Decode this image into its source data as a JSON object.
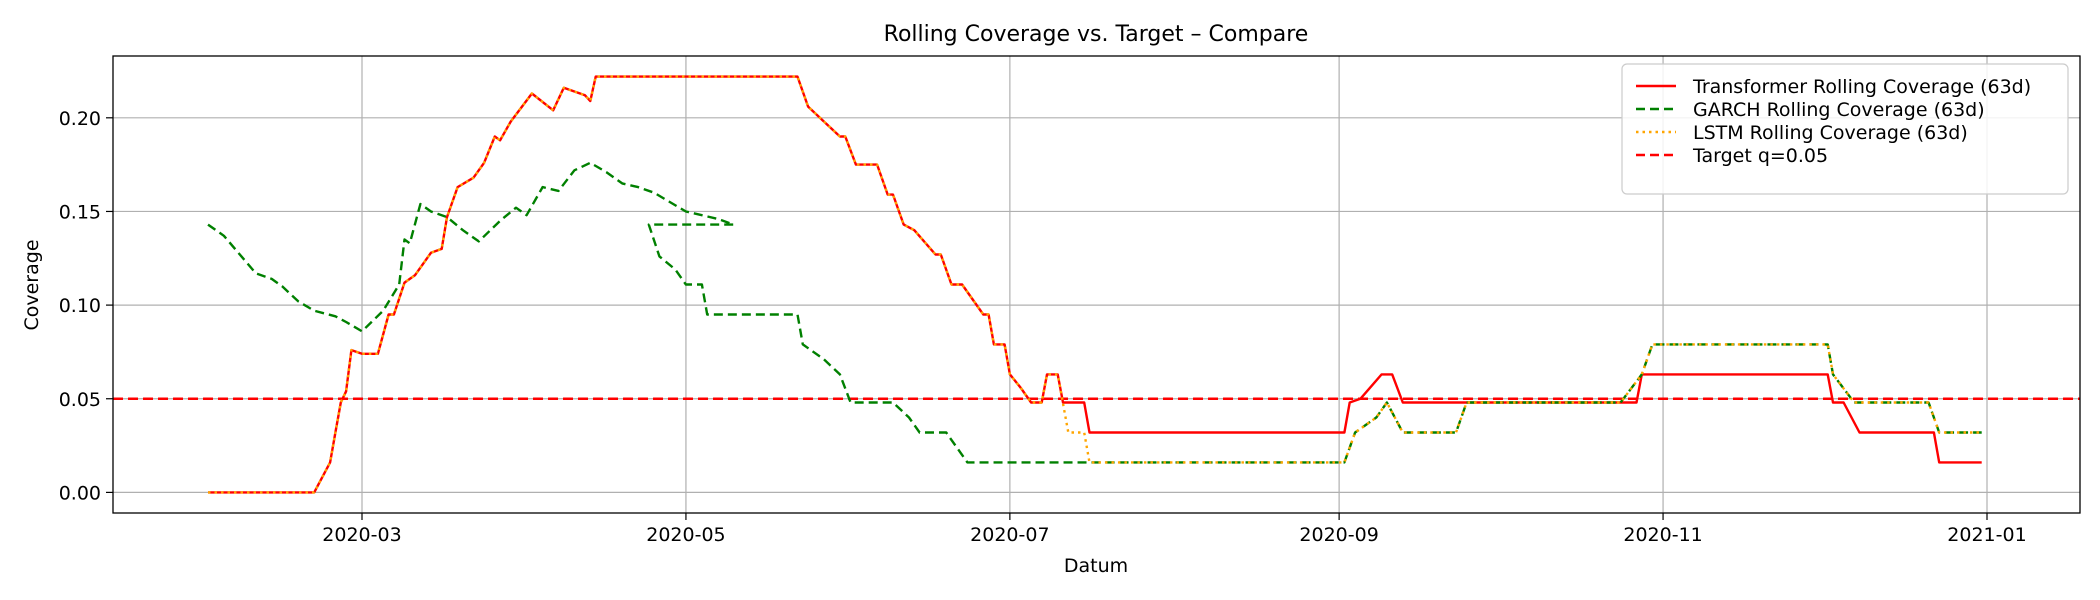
{
  "chart_data": {
    "type": "line",
    "title": "Rolling Coverage vs. Target – Compare",
    "xlabel": "Datum",
    "ylabel": "Coverage",
    "xlim": [
      "2020-01-04",
      "2021-01-28"
    ],
    "ylim": [
      -0.011,
      0.233
    ],
    "grid": true,
    "legend_position": "top-right",
    "x_ticks": [
      "2020-03",
      "2020-05",
      "2020-07",
      "2020-09",
      "2020-11",
      "2021-01"
    ],
    "x_tick_dates": [
      "2020-03-01",
      "2020-05-01",
      "2020-07-01",
      "2020-09-01",
      "2020-11-01",
      "2021-01-01"
    ],
    "y_ticks": [
      0.0,
      0.05,
      0.1,
      0.15,
      0.2
    ],
    "y_tick_labels": [
      "0.00",
      "0.05",
      "0.10",
      "0.15",
      "0.20"
    ],
    "target": {
      "name": "Target q=0.05",
      "value": 0.05,
      "color": "#ff0000",
      "style": "dashed"
    },
    "series": [
      {
        "name": "Transformer Rolling Coverage (63d)",
        "color": "#ff0000",
        "style": "solid",
        "points": [
          [
            "2020-02-01",
            0.0
          ],
          [
            "2020-02-21",
            0.0
          ],
          [
            "2020-02-24",
            0.016
          ],
          [
            "2020-02-25",
            0.032
          ],
          [
            "2020-02-26",
            0.048
          ],
          [
            "2020-02-27",
            0.054
          ],
          [
            "2020-02-28",
            0.076
          ],
          [
            "2020-03-01",
            0.074
          ],
          [
            "2020-03-04",
            0.074
          ],
          [
            "2020-03-06",
            0.095
          ],
          [
            "2020-03-07",
            0.095
          ],
          [
            "2020-03-09",
            0.112
          ],
          [
            "2020-03-11",
            0.116
          ],
          [
            "2020-03-14",
            0.128
          ],
          [
            "2020-03-16",
            0.13
          ],
          [
            "2020-03-17",
            0.147
          ],
          [
            "2020-03-19",
            0.163
          ],
          [
            "2020-03-22",
            0.168
          ],
          [
            "2020-03-24",
            0.176
          ],
          [
            "2020-03-26",
            0.19
          ],
          [
            "2020-03-27",
            0.188
          ],
          [
            "2020-03-29",
            0.198
          ],
          [
            "2020-04-02",
            0.213
          ],
          [
            "2020-04-06",
            0.204
          ],
          [
            "2020-04-08",
            0.216
          ],
          [
            "2020-04-12",
            0.212
          ],
          [
            "2020-04-13",
            0.209
          ],
          [
            "2020-04-14",
            0.222
          ],
          [
            "2020-05-22",
            0.222
          ],
          [
            "2020-05-24",
            0.206
          ],
          [
            "2020-05-27",
            0.198
          ],
          [
            "2020-05-30",
            0.19
          ],
          [
            "2020-05-31",
            0.19
          ],
          [
            "2020-06-02",
            0.175
          ],
          [
            "2020-06-06",
            0.175
          ],
          [
            "2020-06-08",
            0.159
          ],
          [
            "2020-06-09",
            0.159
          ],
          [
            "2020-06-11",
            0.143
          ],
          [
            "2020-06-13",
            0.14
          ],
          [
            "2020-06-17",
            0.127
          ],
          [
            "2020-06-18",
            0.127
          ],
          [
            "2020-06-20",
            0.111
          ],
          [
            "2020-06-22",
            0.111
          ],
          [
            "2020-06-26",
            0.095
          ],
          [
            "2020-06-27",
            0.095
          ],
          [
            "2020-06-28",
            0.079
          ],
          [
            "2020-06-30",
            0.079
          ],
          [
            "2020-07-01",
            0.063
          ],
          [
            "2020-07-03",
            0.056
          ],
          [
            "2020-07-05",
            0.048
          ],
          [
            "2020-07-07",
            0.048
          ],
          [
            "2020-07-08",
            0.063
          ],
          [
            "2020-07-10",
            0.063
          ],
          [
            "2020-07-11",
            0.048
          ],
          [
            "2020-07-15",
            0.048
          ],
          [
            "2020-07-16",
            0.032
          ],
          [
            "2020-09-02",
            0.032
          ],
          [
            "2020-09-03",
            0.048
          ],
          [
            "2020-09-05",
            0.05
          ],
          [
            "2020-09-09",
            0.063
          ],
          [
            "2020-09-11",
            0.063
          ],
          [
            "2020-09-13",
            0.048
          ],
          [
            "2020-10-27",
            0.048
          ],
          [
            "2020-10-28",
            0.063
          ],
          [
            "2020-12-02",
            0.063
          ],
          [
            "2020-12-03",
            0.048
          ],
          [
            "2020-12-05",
            0.048
          ],
          [
            "2020-12-08",
            0.032
          ],
          [
            "2020-12-22",
            0.032
          ],
          [
            "2020-12-23",
            0.016
          ],
          [
            "2020-12-31",
            0.016
          ]
        ]
      },
      {
        "name": "GARCH Rolling Coverage (63d)",
        "color": "#008000",
        "style": "dashed",
        "points": [
          [
            "2020-02-01",
            0.143
          ],
          [
            "2020-02-05",
            0.137
          ],
          [
            "2020-02-09",
            0.124
          ],
          [
            "2020-02-12",
            0.117
          ],
          [
            "2020-02-16",
            0.11
          ],
          [
            "2020-02-19",
            0.102
          ],
          [
            "2020-02-21",
            0.097
          ],
          [
            "2020-02-26",
            0.095
          ],
          [
            "2020-03-02",
            0.091
          ],
          [
            "2020-03-05",
            0.086
          ],
          [
            "2020-03-08",
            0.095
          ],
          [
            "2020-03-11",
            0.105
          ],
          [
            "2020-03-13",
            0.113
          ],
          [
            "2020-03-14",
            0.136
          ],
          [
            "2020-03-15",
            0.131
          ],
          [
            "2020-03-17",
            0.155
          ],
          [
            "2020-03-20",
            0.15
          ],
          [
            "2020-03-24",
            0.147
          ],
          [
            "2020-03-27",
            0.14
          ],
          [
            "2020-03-30",
            0.134
          ],
          [
            "2020-04-01",
            0.144
          ],
          [
            "2020-04-03",
            0.152
          ],
          [
            "2020-04-06",
            0.148
          ],
          [
            "2020-04-08",
            0.163
          ],
          [
            "2020-04-11",
            0.161
          ],
          [
            "2020-04-14",
            0.172
          ],
          [
            "2020-04-16",
            0.177
          ],
          [
            "2020-04-19",
            0.172
          ],
          [
            "2020-04-23",
            0.165
          ],
          [
            "2020-04-26",
            0.163
          ],
          [
            "2020-04-29",
            0.16
          ],
          [
            "2020-05-02",
            0.155
          ],
          [
            "2020-05-05",
            0.15
          ],
          [
            "2020-05-08",
            0.148
          ],
          [
            "2020-05-11",
            0.146
          ],
          [
            "2020-05-13",
            0.143
          ],
          [
            "2020-04-01",
            0.143
          ]
        ]
      },
      {
        "name": "LSTM Rolling Coverage (63d)",
        "color": "#ffa500",
        "style": "dotted",
        "points": []
      }
    ]
  }
}
